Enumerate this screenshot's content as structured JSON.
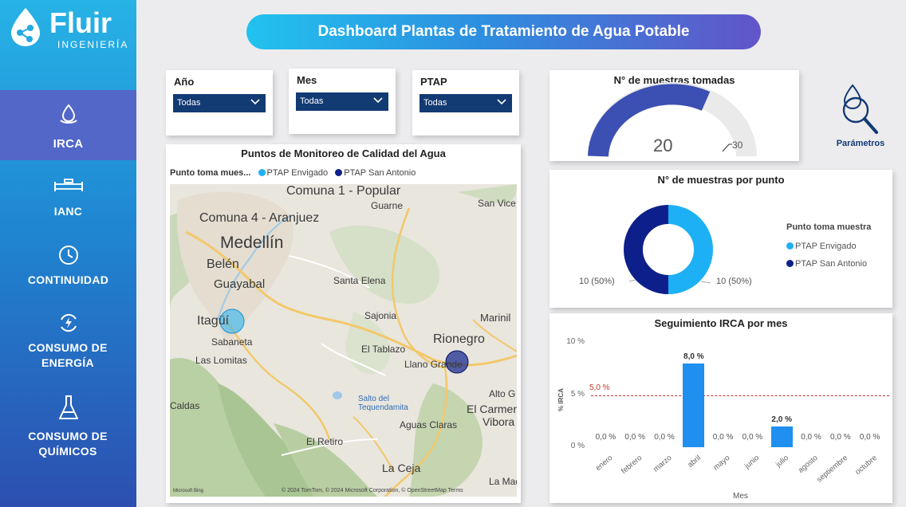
{
  "brand": {
    "name": "Fluir",
    "sub": "INGENIERÍA"
  },
  "colors": {
    "accent": "#123a73",
    "bar": "#1f8ff0",
    "envigado": "#1eb0f5",
    "san_antonio": "#0d1f8a",
    "threshold": "#c0392b"
  },
  "nav": {
    "items": [
      {
        "label": "IRCA",
        "icon": "water-drop-hand-icon",
        "active": true
      },
      {
        "label": "IANC",
        "icon": "pipe-valve-icon",
        "active": false
      },
      {
        "label": "CONTINUIDAD",
        "icon": "clock-icon",
        "active": false
      },
      {
        "label": "CONSUMO DE ENERGÍA",
        "icon": "energy-refresh-icon",
        "active": false
      },
      {
        "label": "CONSUMO DE QUÍMICOS",
        "icon": "flask-icon",
        "active": false
      }
    ]
  },
  "header": {
    "title": "Dashboard Plantas de Tratamiento de Agua Potable"
  },
  "filters": [
    {
      "label": "Año",
      "value": "Todas"
    },
    {
      "label": "Mes",
      "value": "Todas"
    },
    {
      "label": "PTAP",
      "value": "Todas"
    }
  ],
  "map": {
    "title": "Puntos de Monitoreo de Calidad del Agua",
    "legend_title": "Punto toma mues...",
    "legend_items": [
      "PTAP Envigado",
      "PTAP San Antonio"
    ],
    "places": [
      "Comuna 1 - Popular",
      "Guarne",
      "San Vice",
      "Comuna 4 - Aranjuez",
      "Medellín",
      "Belén",
      "Guayabal",
      "Santa Elena",
      "Sajonia",
      "Marinil",
      "Itagüí",
      "Rionegro",
      "Sabaneta",
      "El Tablazo",
      "Llano Grande",
      "Las Lomitas",
      "Alto G",
      "Caldas",
      "Salto del Tequendamita",
      "El Carmen",
      "Vibora",
      "Aguas Claras",
      "El Retiro",
      "La Ceja",
      "La Made"
    ],
    "attribution": "© 2024 TomTom, © 2024 Microsoft Corporation, © OpenStreetMap  Terms",
    "bing": "Microsoft Bing"
  },
  "kpi": {
    "title": "N° de muestras tomadas",
    "value": "20",
    "max": "30"
  },
  "params": {
    "label": "Parámetros"
  },
  "donut": {
    "title": "N° de muestras por punto",
    "legend_title": "Punto toma muestra",
    "items": [
      {
        "name": "PTAP Envigado",
        "value": 10,
        "label": "10 (50%)"
      },
      {
        "name": "PTAP San Antonio",
        "value": 10,
        "label": "10 (50%)"
      }
    ]
  },
  "chart_data": {
    "type": "bar",
    "title": "Seguimiento IRCA por mes",
    "xlabel": "Mes",
    "ylabel": "% IRCA",
    "categories": [
      "enero",
      "febrero",
      "marzo",
      "abril",
      "mayo",
      "junio",
      "julio",
      "agosto",
      "septiembre",
      "octubre"
    ],
    "values": [
      0,
      0,
      0,
      8,
      0,
      0,
      2,
      0,
      0,
      0
    ],
    "value_labels": [
      "0,0 %",
      "0,0 %",
      "0,0 %",
      "8,0 %",
      "0,0 %",
      "0,0 %",
      "2,0 %",
      "0,0 %",
      "0,0 %",
      "0,0 %"
    ],
    "yticks": [
      "0 %",
      "5 %",
      "10 %"
    ],
    "ylim": [
      0,
      10
    ],
    "threshold": {
      "value": 5,
      "label": "5,0 %"
    },
    "grid": false
  }
}
